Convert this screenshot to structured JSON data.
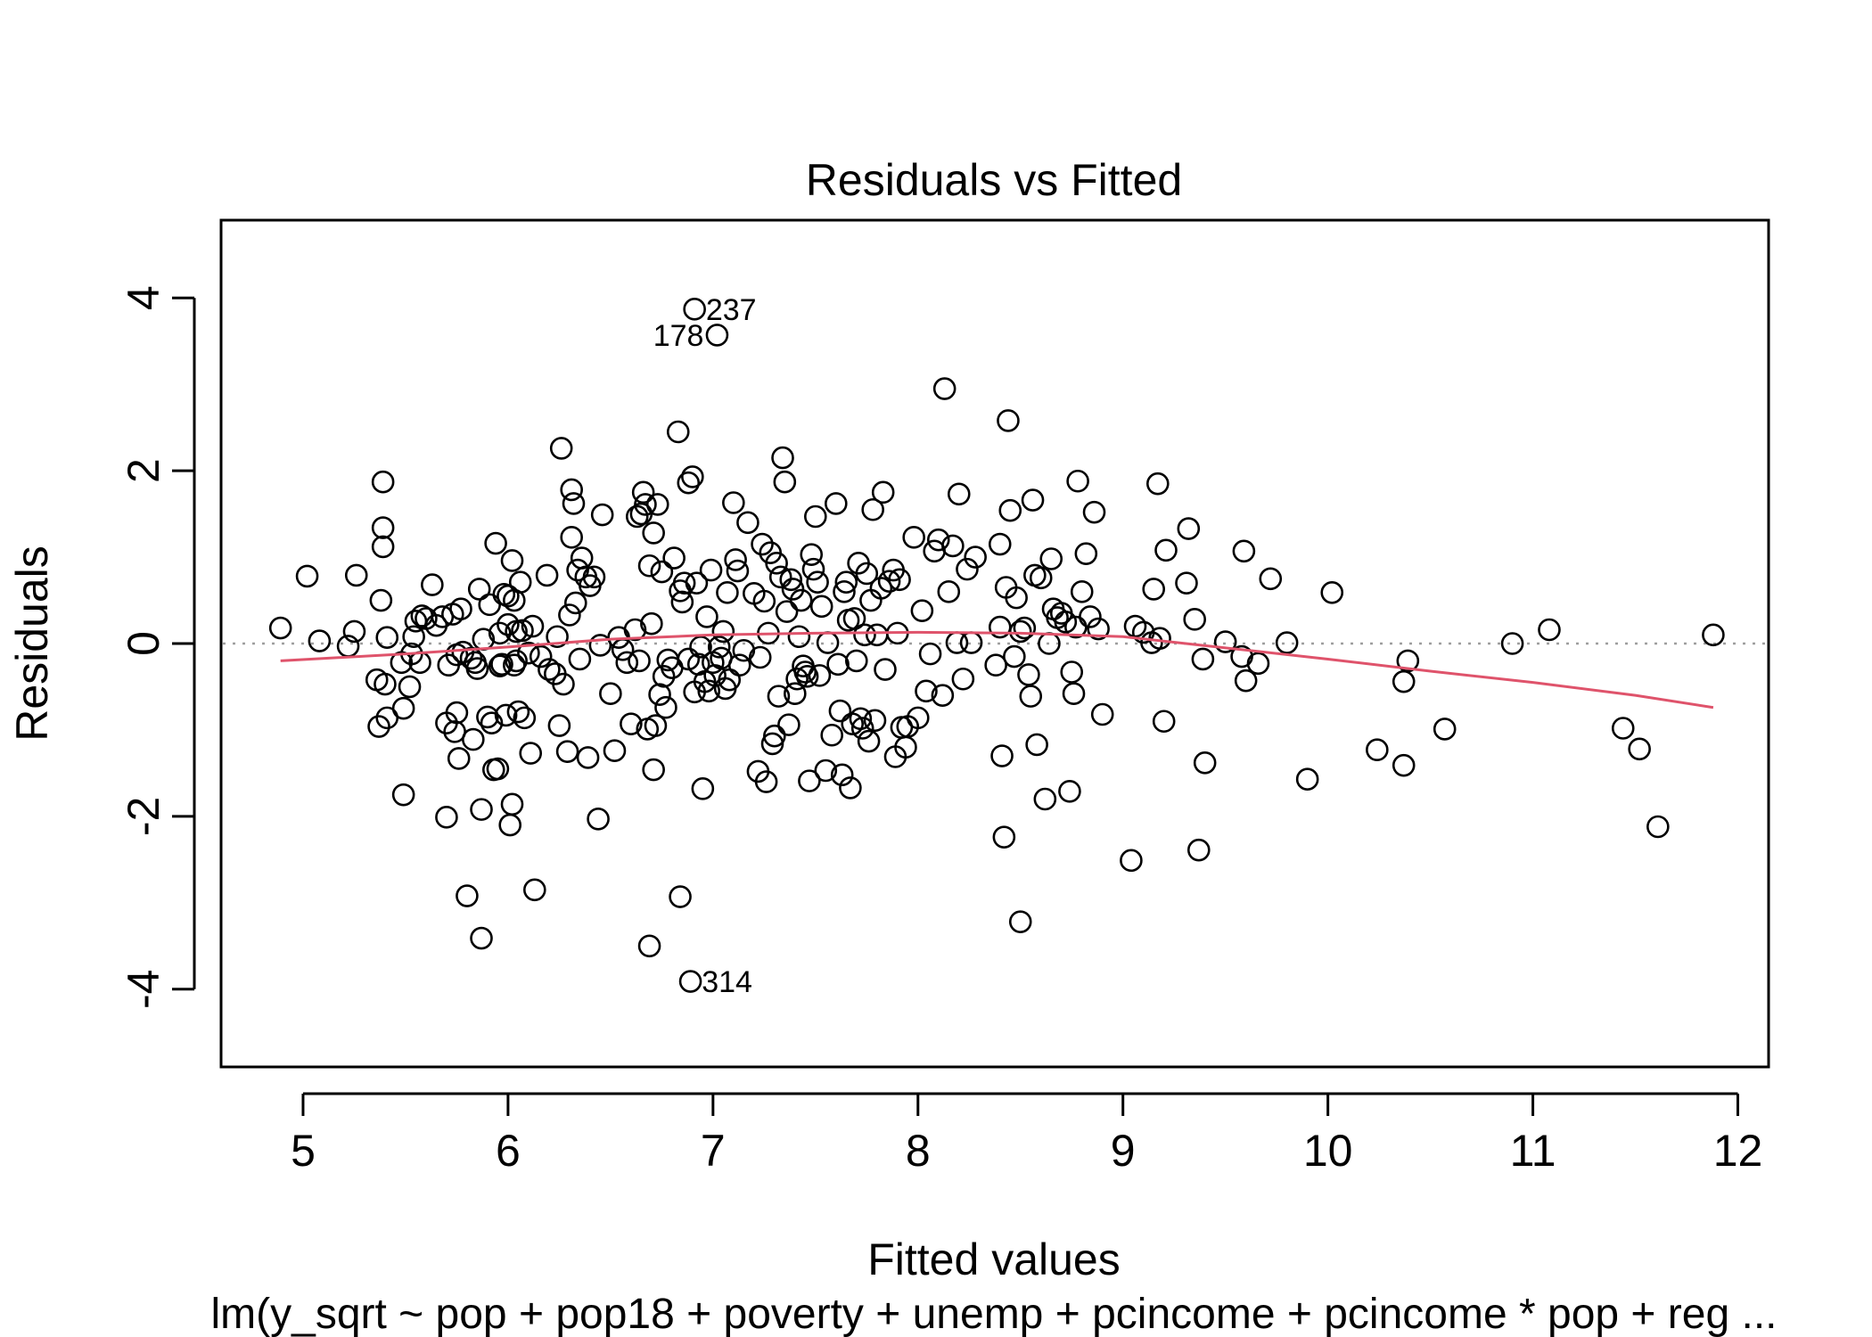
{
  "chart_data": {
    "type": "scatter",
    "title": "Residuals vs Fitted",
    "xlabel": "Fitted values",
    "ylabel": "Residuals",
    "caption": "lm(y_sqrt ~ pop + pop18 + poverty + unemp + pcincome + pcincome * pop + reg ...",
    "xlim": [
      4.6,
      12.15
    ],
    "ylim": [
      -4.9,
      4.9
    ],
    "xticks": [
      5,
      6,
      7,
      8,
      9,
      10,
      11,
      12
    ],
    "yticks": [
      -4,
      -2,
      0,
      2,
      4
    ],
    "xtick_labels": [
      "5",
      "6",
      "7",
      "8",
      "9",
      "10",
      "11",
      "12"
    ],
    "ytick_labels": [
      "-4",
      "-2",
      "0",
      "2",
      "4"
    ],
    "grid": false,
    "reference_line": {
      "y": 0,
      "style": "dotted",
      "color": "#9e9e9e"
    },
    "smooth_line": {
      "color": "#df536b",
      "x": [
        4.89,
        5.5,
        6.0,
        6.5,
        7.0,
        7.5,
        8.0,
        8.5,
        9.0,
        9.5,
        10.0,
        10.5,
        11.0,
        11.5,
        11.88
      ],
      "y": [
        -0.2,
        -0.12,
        -0.04,
        0.05,
        0.1,
        0.12,
        0.13,
        0.12,
        0.08,
        -0.05,
        -0.18,
        -0.32,
        -0.45,
        -0.6,
        -0.74
      ]
    },
    "labeled_points": [
      {
        "label": "237",
        "x": 6.9,
        "y": 3.87,
        "side": "right"
      },
      {
        "label": "178",
        "x": 7.02,
        "y": 3.57,
        "side": "left"
      },
      {
        "label": "314",
        "x": 6.88,
        "y": -3.91,
        "side": "right"
      }
    ],
    "points": [
      [
        4.89,
        0.18
      ],
      [
        5.02,
        0.78
      ],
      [
        5.08,
        0.03
      ],
      [
        5.22,
        -0.03
      ],
      [
        5.25,
        0.14
      ],
      [
        5.26,
        0.79
      ],
      [
        5.36,
        -0.42
      ],
      [
        5.37,
        -0.96
      ],
      [
        5.38,
        0.5
      ],
      [
        5.39,
        1.87
      ],
      [
        5.39,
        1.34
      ],
      [
        5.39,
        1.12
      ],
      [
        5.4,
        -0.47
      ],
      [
        5.41,
        -0.86
      ],
      [
        5.41,
        0.07
      ],
      [
        5.48,
        -0.22
      ],
      [
        5.49,
        -0.75
      ],
      [
        5.49,
        -1.75
      ],
      [
        5.52,
        -0.5
      ],
      [
        5.53,
        -0.12
      ],
      [
        5.54,
        0.08
      ],
      [
        5.55,
        0.26
      ],
      [
        5.57,
        -0.22
      ],
      [
        5.58,
        0.32
      ],
      [
        5.6,
        0.29
      ],
      [
        5.63,
        0.68
      ],
      [
        5.65,
        0.21
      ],
      [
        5.68,
        0.31
      ],
      [
        5.7,
        -2.01
      ],
      [
        5.7,
        -0.92
      ],
      [
        5.71,
        -0.25
      ],
      [
        5.73,
        0.34
      ],
      [
        5.74,
        -1.02
      ],
      [
        5.75,
        -0.8
      ],
      [
        5.75,
        -0.13
      ],
      [
        5.76,
        -1.33
      ],
      [
        5.77,
        0.4
      ],
      [
        5.78,
        -0.1
      ],
      [
        5.8,
        -2.92
      ],
      [
        5.82,
        -0.17
      ],
      [
        5.83,
        -1.11
      ],
      [
        5.84,
        -0.22
      ],
      [
        5.85,
        -0.29
      ],
      [
        5.86,
        0.63
      ],
      [
        5.87,
        -1.92
      ],
      [
        5.87,
        -3.41
      ],
      [
        5.88,
        0.05
      ],
      [
        5.9,
        -0.85
      ],
      [
        5.91,
        0.45
      ],
      [
        5.92,
        -0.92
      ],
      [
        5.93,
        -1.46
      ],
      [
        5.94,
        1.16
      ],
      [
        5.95,
        -1.45
      ],
      [
        5.96,
        0.12
      ],
      [
        5.96,
        -0.26
      ],
      [
        5.97,
        -0.24
      ],
      [
        5.98,
        0.57
      ],
      [
        5.99,
        -0.83
      ],
      [
        6.0,
        0.22
      ],
      [
        6.0,
        0.55
      ],
      [
        6.01,
        -2.1
      ],
      [
        6.02,
        0.96
      ],
      [
        6.02,
        -1.86
      ],
      [
        6.03,
        -0.25
      ],
      [
        6.03,
        0.5
      ],
      [
        6.04,
        0.14
      ],
      [
        6.04,
        -0.2
      ],
      [
        6.05,
        -0.79
      ],
      [
        6.06,
        0.71
      ],
      [
        6.07,
        0.15
      ],
      [
        6.08,
        -0.86
      ],
      [
        6.1,
        -0.11
      ],
      [
        6.11,
        -1.27
      ],
      [
        6.12,
        0.2
      ],
      [
        6.13,
        -2.85
      ],
      [
        6.16,
        -0.15
      ],
      [
        6.19,
        0.79
      ],
      [
        6.2,
        -0.3
      ],
      [
        6.23,
        -0.35
      ],
      [
        6.24,
        0.08
      ],
      [
        6.25,
        -0.95
      ],
      [
        6.26,
        2.26
      ],
      [
        6.27,
        -0.47
      ],
      [
        6.29,
        -1.25
      ],
      [
        6.3,
        0.33
      ],
      [
        6.31,
        1.78
      ],
      [
        6.31,
        1.23
      ],
      [
        6.32,
        1.62
      ],
      [
        6.33,
        0.47
      ],
      [
        6.34,
        0.85
      ],
      [
        6.35,
        -0.18
      ],
      [
        6.36,
        0.99
      ],
      [
        6.38,
        0.77
      ],
      [
        6.39,
        -1.32
      ],
      [
        6.4,
        0.67
      ],
      [
        6.42,
        0.77
      ],
      [
        6.44,
        -2.03
      ],
      [
        6.45,
        -0.02
      ],
      [
        6.46,
        1.49
      ],
      [
        6.5,
        -0.58
      ],
      [
        6.52,
        -1.24
      ],
      [
        6.54,
        0.07
      ],
      [
        6.56,
        -0.07
      ],
      [
        6.58,
        -0.22
      ],
      [
        6.6,
        -0.93
      ],
      [
        6.62,
        0.16
      ],
      [
        6.63,
        1.47
      ],
      [
        6.64,
        -0.2
      ],
      [
        6.65,
        1.5
      ],
      [
        6.66,
        1.75
      ],
      [
        6.67,
        1.61
      ],
      [
        6.68,
        -0.99
      ],
      [
        6.69,
        0.9
      ],
      [
        6.69,
        -3.5
      ],
      [
        6.7,
        0.23
      ],
      [
        6.71,
        -1.46
      ],
      [
        6.71,
        1.28
      ],
      [
        6.72,
        -0.95
      ],
      [
        6.73,
        1.61
      ],
      [
        6.74,
        -0.59
      ],
      [
        6.75,
        0.83
      ],
      [
        6.76,
        -0.38
      ],
      [
        6.77,
        -0.74
      ],
      [
        6.78,
        -0.19
      ],
      [
        6.8,
        -0.28
      ],
      [
        6.81,
        0.99
      ],
      [
        6.83,
        2.45
      ],
      [
        6.84,
        -2.93
      ],
      [
        6.84,
        0.61
      ],
      [
        6.85,
        0.48
      ],
      [
        6.86,
        0.7
      ],
      [
        6.88,
        -0.18
      ],
      [
        6.88,
        1.86
      ],
      [
        6.89,
        -3.91
      ],
      [
        6.9,
        1.93
      ],
      [
        6.91,
        3.87
      ],
      [
        6.91,
        -0.56
      ],
      [
        6.92,
        0.7
      ],
      [
        6.93,
        -0.24
      ],
      [
        6.94,
        -0.04
      ],
      [
        6.95,
        -1.68
      ],
      [
        6.96,
        -0.44
      ],
      [
        6.97,
        0.31
      ],
      [
        6.98,
        -0.55
      ],
      [
        6.99,
        0.85
      ],
      [
        7.0,
        -0.22
      ],
      [
        7.01,
        -0.37
      ],
      [
        7.02,
        3.57
      ],
      [
        7.03,
        -0.04
      ],
      [
        7.04,
        -0.17
      ],
      [
        7.05,
        0.14
      ],
      [
        7.06,
        -0.52
      ],
      [
        7.07,
        0.59
      ],
      [
        7.08,
        -0.42
      ],
      [
        7.1,
        1.63
      ],
      [
        7.11,
        0.97
      ],
      [
        7.12,
        0.84
      ],
      [
        7.13,
        -0.25
      ],
      [
        7.15,
        -0.08
      ],
      [
        7.17,
        1.4
      ],
      [
        7.2,
        0.58
      ],
      [
        7.22,
        -1.48
      ],
      [
        7.23,
        -0.16
      ],
      [
        7.24,
        1.15
      ],
      [
        7.25,
        0.49
      ],
      [
        7.26,
        -1.6
      ],
      [
        7.27,
        0.12
      ],
      [
        7.28,
        1.05
      ],
      [
        7.29,
        -1.16
      ],
      [
        7.3,
        -1.07
      ],
      [
        7.31,
        0.93
      ],
      [
        7.32,
        -0.61
      ],
      [
        7.33,
        0.77
      ],
      [
        7.34,
        2.15
      ],
      [
        7.35,
        1.87
      ],
      [
        7.36,
        0.37
      ],
      [
        7.37,
        -0.94
      ],
      [
        7.38,
        0.74
      ],
      [
        7.39,
        0.63
      ],
      [
        7.4,
        -0.58
      ],
      [
        7.41,
        -0.41
      ],
      [
        7.42,
        0.08
      ],
      [
        7.43,
        0.5
      ],
      [
        7.44,
        -0.26
      ],
      [
        7.45,
        -0.33
      ],
      [
        7.46,
        -0.38
      ],
      [
        7.47,
        -1.59
      ],
      [
        7.48,
        1.03
      ],
      [
        7.49,
        0.86
      ],
      [
        7.5,
        1.47
      ],
      [
        7.51,
        0.71
      ],
      [
        7.52,
        -0.37
      ],
      [
        7.53,
        0.43
      ],
      [
        7.55,
        -1.47
      ],
      [
        7.56,
        0.01
      ],
      [
        7.58,
        -1.06
      ],
      [
        7.6,
        1.62
      ],
      [
        7.61,
        -0.24
      ],
      [
        7.62,
        -0.78
      ],
      [
        7.63,
        -1.52
      ],
      [
        7.64,
        0.6
      ],
      [
        7.65,
        0.71
      ],
      [
        7.66,
        0.27
      ],
      [
        7.67,
        -1.67
      ],
      [
        7.68,
        -0.93
      ],
      [
        7.69,
        0.29
      ],
      [
        7.7,
        -0.2
      ],
      [
        7.71,
        0.93
      ],
      [
        7.72,
        -0.87
      ],
      [
        7.73,
        -0.98
      ],
      [
        7.74,
        0.1
      ],
      [
        7.75,
        0.81
      ],
      [
        7.76,
        -1.13
      ],
      [
        7.77,
        0.5
      ],
      [
        7.78,
        1.55
      ],
      [
        7.79,
        -0.89
      ],
      [
        7.8,
        0.1
      ],
      [
        7.82,
        0.64
      ],
      [
        7.83,
        1.75
      ],
      [
        7.84,
        -0.3
      ],
      [
        7.86,
        0.72
      ],
      [
        7.88,
        0.85
      ],
      [
        7.89,
        -1.31
      ],
      [
        7.9,
        0.12
      ],
      [
        7.91,
        0.74
      ],
      [
        7.92,
        -0.97
      ],
      [
        7.94,
        -1.2
      ],
      [
        7.95,
        -0.96
      ],
      [
        7.98,
        1.23
      ],
      [
        8.0,
        -0.86
      ],
      [
        8.02,
        0.38
      ],
      [
        8.04,
        -0.55
      ],
      [
        8.06,
        -0.12
      ],
      [
        8.08,
        1.07
      ],
      [
        8.1,
        1.2
      ],
      [
        8.12,
        -0.6
      ],
      [
        8.13,
        2.95
      ],
      [
        8.15,
        0.6
      ],
      [
        8.17,
        1.13
      ],
      [
        8.19,
        0.01
      ],
      [
        8.2,
        1.73
      ],
      [
        8.22,
        -0.41
      ],
      [
        8.24,
        0.86
      ],
      [
        8.26,
        0.01
      ],
      [
        8.28,
        1.0
      ],
      [
        8.38,
        -0.25
      ],
      [
        8.4,
        0.19
      ],
      [
        8.4,
        1.15
      ],
      [
        8.41,
        -1.3
      ],
      [
        8.42,
        -2.24
      ],
      [
        8.43,
        0.65
      ],
      [
        8.44,
        2.58
      ],
      [
        8.45,
        1.54
      ],
      [
        8.47,
        -0.15
      ],
      [
        8.48,
        0.53
      ],
      [
        8.5,
        -3.22
      ],
      [
        8.5,
        0.14
      ],
      [
        8.52,
        0.18
      ],
      [
        8.54,
        -0.36
      ],
      [
        8.55,
        -0.61
      ],
      [
        8.56,
        1.66
      ],
      [
        8.57,
        0.79
      ],
      [
        8.58,
        -1.17
      ],
      [
        8.6,
        0.76
      ],
      [
        8.62,
        -1.8
      ],
      [
        8.64,
        0.0
      ],
      [
        8.65,
        0.98
      ],
      [
        8.66,
        0.4
      ],
      [
        8.68,
        0.3
      ],
      [
        8.7,
        0.35
      ],
      [
        8.72,
        0.25
      ],
      [
        8.74,
        -1.71
      ],
      [
        8.75,
        -0.33
      ],
      [
        8.76,
        -0.58
      ],
      [
        8.77,
        0.19
      ],
      [
        8.78,
        1.88
      ],
      [
        8.8,
        0.6
      ],
      [
        8.82,
        1.04
      ],
      [
        8.84,
        0.31
      ],
      [
        8.86,
        1.52
      ],
      [
        8.88,
        0.17
      ],
      [
        8.9,
        -0.82
      ],
      [
        9.04,
        -2.51
      ],
      [
        9.06,
        0.2
      ],
      [
        9.1,
        0.13
      ],
      [
        9.14,
        0.01
      ],
      [
        9.15,
        0.63
      ],
      [
        9.17,
        1.85
      ],
      [
        9.18,
        0.06
      ],
      [
        9.2,
        -0.9
      ],
      [
        9.21,
        1.08
      ],
      [
        9.31,
        0.7
      ],
      [
        9.32,
        1.33
      ],
      [
        9.35,
        0.28
      ],
      [
        9.37,
        -2.39
      ],
      [
        9.39,
        -0.18
      ],
      [
        9.4,
        -1.38
      ],
      [
        9.5,
        0.02
      ],
      [
        9.58,
        -0.15
      ],
      [
        9.59,
        1.07
      ],
      [
        9.6,
        -0.43
      ],
      [
        9.66,
        -0.23
      ],
      [
        9.72,
        0.75
      ],
      [
        9.8,
        0.01
      ],
      [
        9.9,
        -1.57
      ],
      [
        10.02,
        0.59
      ],
      [
        10.24,
        -1.23
      ],
      [
        10.37,
        -1.41
      ],
      [
        10.37,
        -0.44
      ],
      [
        10.39,
        -0.2
      ],
      [
        10.57,
        -0.99
      ],
      [
        10.9,
        0.0
      ],
      [
        11.08,
        0.16
      ],
      [
        11.44,
        -0.98
      ],
      [
        11.52,
        -1.22
      ],
      [
        11.61,
        -2.12
      ],
      [
        11.88,
        0.1
      ]
    ]
  }
}
